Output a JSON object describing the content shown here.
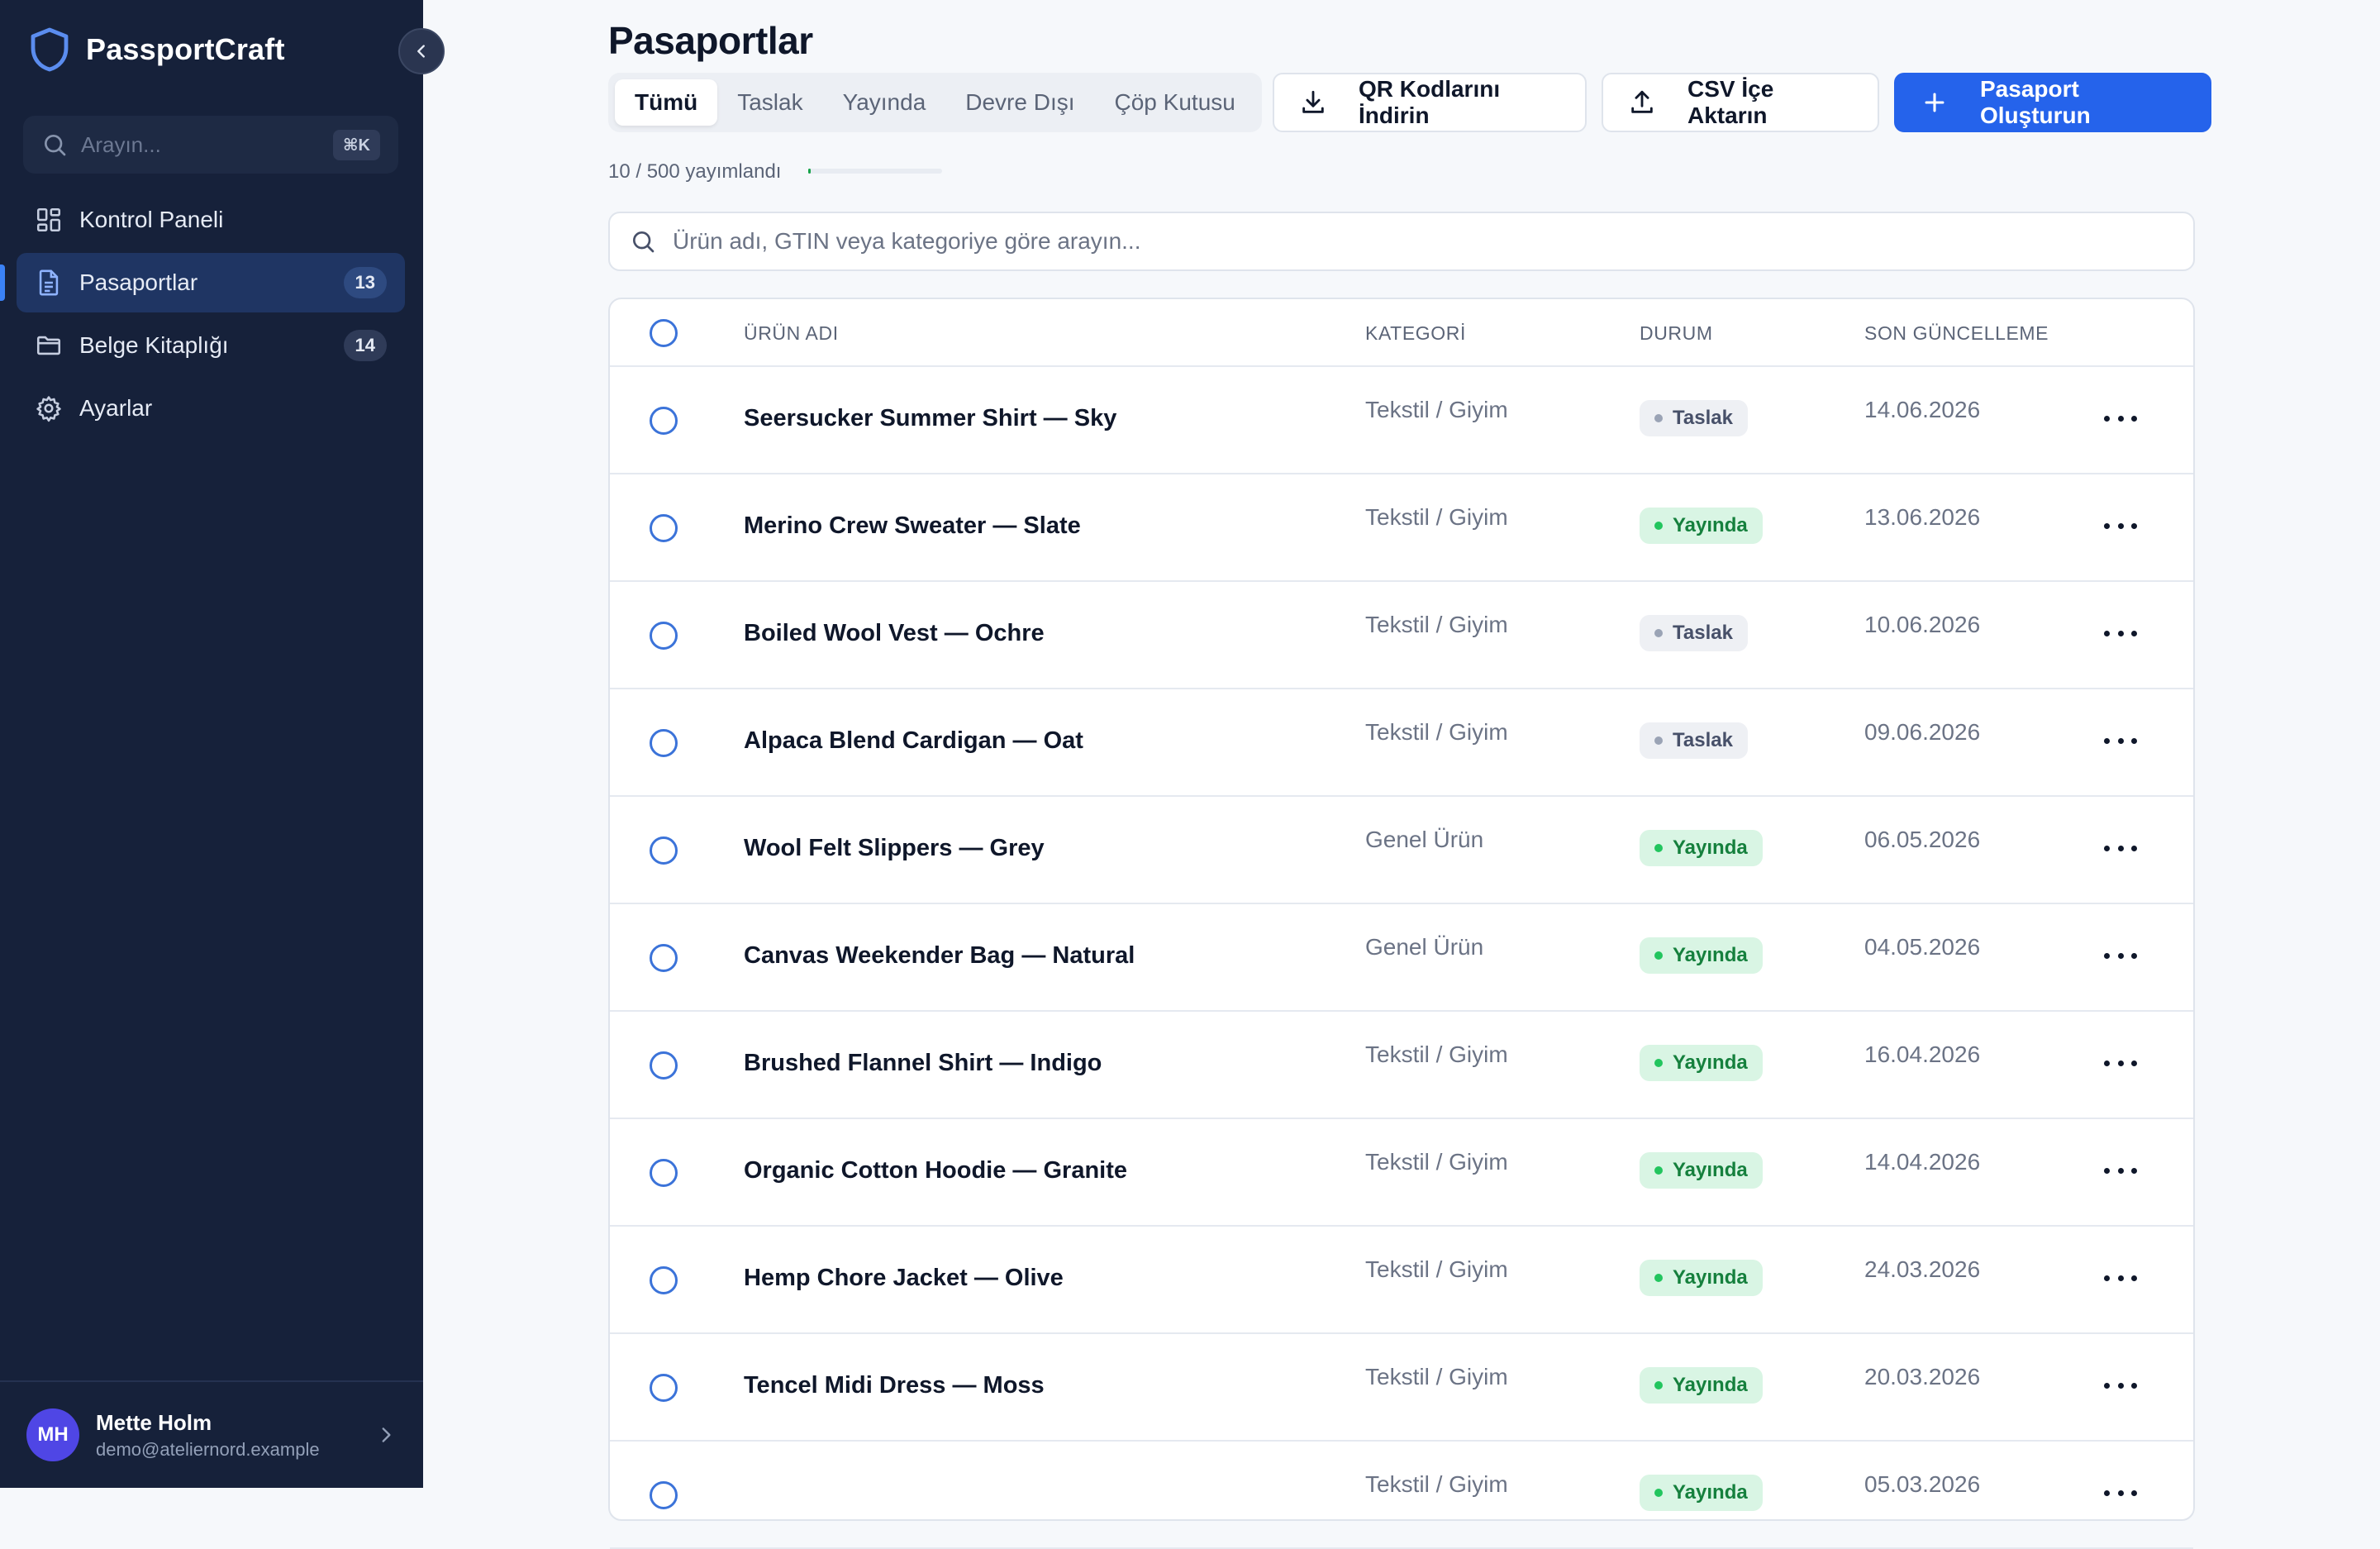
{
  "app": {
    "name": "PassportCraft"
  },
  "sidebar": {
    "search_placeholder": "Arayın...",
    "search_shortcut": "⌘K",
    "items": [
      {
        "label": "Kontrol Paneli",
        "icon": "dashboard-icon",
        "count": ""
      },
      {
        "label": "Pasaportlar",
        "icon": "document-icon",
        "count": "13",
        "active": true
      },
      {
        "label": "Belge Kitaplığı",
        "icon": "folder-icon",
        "count": "14"
      },
      {
        "label": "Ayarlar",
        "icon": "gear-icon",
        "count": ""
      }
    ],
    "user": {
      "initials": "MH",
      "name": "Mette Holm",
      "email": "demo@ateliernord.example"
    }
  },
  "main": {
    "title": "Pasaportlar",
    "tabs": [
      "Tümü",
      "Taslak",
      "Yayında",
      "Devre Dışı",
      "Çöp Kutusu"
    ],
    "active_tab": "Tümü",
    "buttons": {
      "download_qr": "QR Kodlarını İndirin",
      "import_csv": "CSV İçe Aktarın",
      "create": "Pasaport Oluşturun"
    },
    "progress": {
      "text": "10 / 500 yayımlandı",
      "fraction": 0.02
    },
    "search_placeholder": "Ürün adı, GTIN veya kategoriye göre arayın...",
    "columns": [
      "ÜRÜN ADI",
      "KATEGORİ",
      "DURUM",
      "SON GÜNCELLEME"
    ],
    "rows": [
      {
        "name": "Seersucker Summer Shirt — Sky",
        "category": "Tekstil / Giyim",
        "status": "Taslak",
        "updated": "14.06.2026"
      },
      {
        "name": "Merino Crew Sweater — Slate",
        "category": "Tekstil / Giyim",
        "status": "Yayında",
        "updated": "13.06.2026"
      },
      {
        "name": "Boiled Wool Vest — Ochre",
        "category": "Tekstil / Giyim",
        "status": "Taslak",
        "updated": "10.06.2026"
      },
      {
        "name": "Alpaca Blend Cardigan — Oat",
        "category": "Tekstil / Giyim",
        "status": "Taslak",
        "updated": "09.06.2026"
      },
      {
        "name": "Wool Felt Slippers — Grey",
        "category": "Genel Ürün",
        "status": "Yayında",
        "updated": "06.05.2026"
      },
      {
        "name": "Canvas Weekender Bag — Natural",
        "category": "Genel Ürün",
        "status": "Yayında",
        "updated": "04.05.2026"
      },
      {
        "name": "Brushed Flannel Shirt — Indigo",
        "category": "Tekstil / Giyim",
        "status": "Yayında",
        "updated": "16.04.2026"
      },
      {
        "name": "Organic Cotton Hoodie — Granite",
        "category": "Tekstil / Giyim",
        "status": "Yayında",
        "updated": "14.04.2026"
      },
      {
        "name": "Hemp Chore Jacket — Olive",
        "category": "Tekstil / Giyim",
        "status": "Yayında",
        "updated": "24.03.2026"
      },
      {
        "name": "Tencel Midi Dress — Moss",
        "category": "Tekstil / Giyim",
        "status": "Yayında",
        "updated": "20.03.2026"
      },
      {
        "name": "",
        "category": "Tekstil / Giyim",
        "status": "Yayında",
        "updated": "05.03.2026"
      }
    ]
  },
  "colors": {
    "sidebar_bg": "#16213a",
    "primary": "#2563eb",
    "published": "#15803d",
    "draft": "#475069"
  }
}
